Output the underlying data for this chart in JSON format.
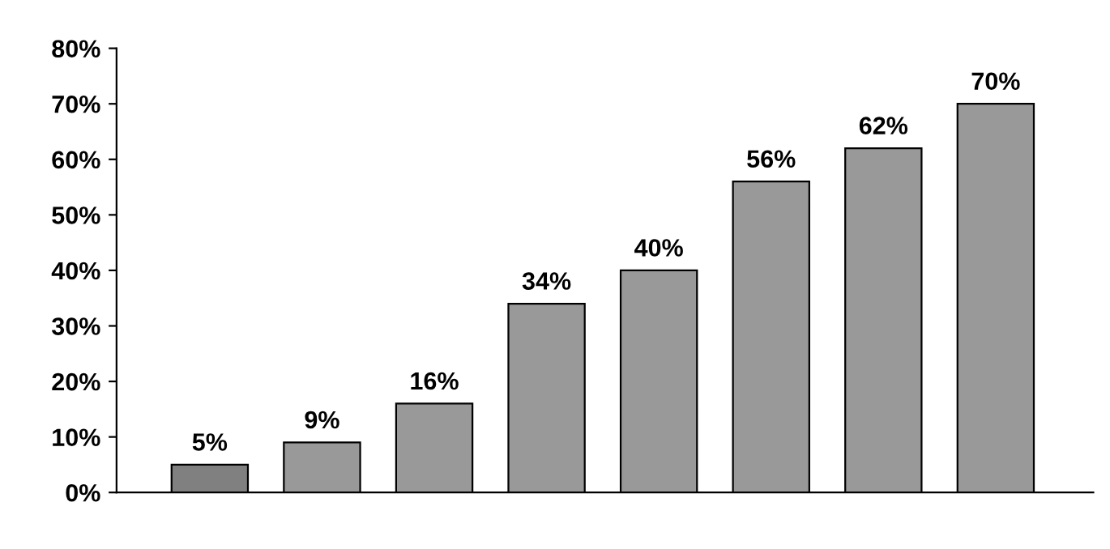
{
  "chart_data": {
    "type": "bar",
    "categories": [
      null,
      null,
      null,
      null,
      null,
      null,
      null,
      null
    ],
    "values": [
      5,
      9,
      16,
      34,
      40,
      56,
      62,
      70
    ],
    "colors": [
      "#808080",
      "#999999",
      "#999999",
      "#999999",
      "#999999",
      "#999999",
      "#999999",
      "#999999"
    ],
    "value_labels": [
      "5%",
      "9%",
      "16%",
      "34%",
      "40%",
      "56%",
      "62%",
      "70%"
    ],
    "ylim": [
      0,
      80
    ],
    "yticks": [
      {
        "value": 0,
        "label": "0%"
      },
      {
        "value": 10,
        "label": "10%"
      },
      {
        "value": 20,
        "label": "20%"
      },
      {
        "value": 30,
        "label": "30%"
      },
      {
        "value": 40,
        "label": "40%"
      },
      {
        "value": 50,
        "label": "50%"
      },
      {
        "value": 60,
        "label": "60%"
      },
      {
        "value": 70,
        "label": "70%"
      },
      {
        "value": 80,
        "label": "80%"
      }
    ],
    "grid": false,
    "legend": false
  }
}
